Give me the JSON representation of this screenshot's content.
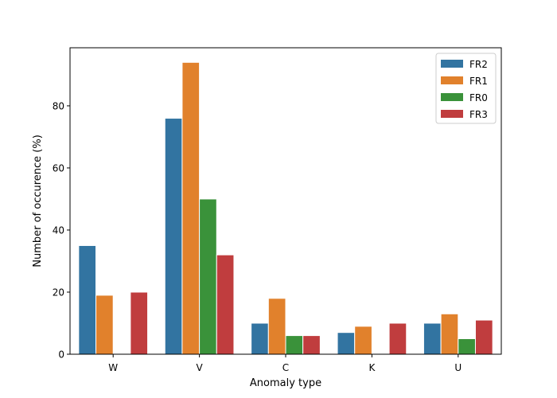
{
  "chart_data": {
    "type": "bar",
    "title": "",
    "xlabel": "Anomaly type",
    "ylabel": "Number of  occurence (%)",
    "categories": [
      "W",
      "V",
      "C",
      "K",
      "U"
    ],
    "ylim": [
      0,
      98.7
    ],
    "yticks": [
      0,
      20,
      40,
      60,
      80
    ],
    "grid": false,
    "legend_position": "top-right",
    "series": [
      {
        "name": "FR2",
        "color": "#3274a1",
        "values": [
          35,
          76,
          10,
          7,
          10
        ]
      },
      {
        "name": "FR1",
        "color": "#e1812c",
        "values": [
          19,
          94,
          18,
          9,
          13
        ]
      },
      {
        "name": "FR0",
        "color": "#3a923a",
        "values": [
          0,
          50,
          6,
          0,
          5
        ]
      },
      {
        "name": "FR3",
        "color": "#c03d3e",
        "values": [
          20,
          32,
          6,
          10,
          11
        ]
      }
    ]
  }
}
